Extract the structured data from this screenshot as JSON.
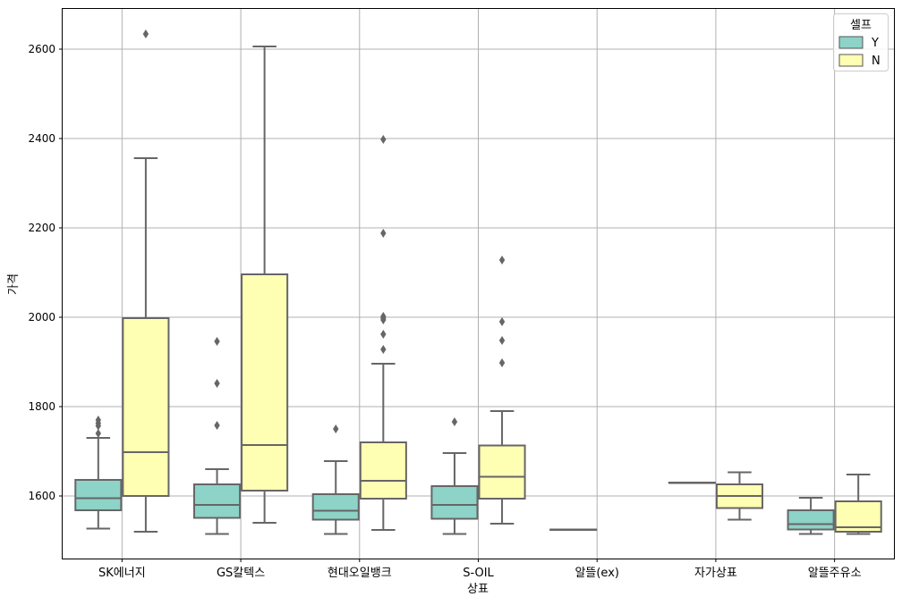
{
  "chart_data": {
    "type": "box",
    "xlabel": "상표",
    "ylabel": "가격",
    "ylim": [
      1460,
      2690
    ],
    "yticks": [
      1600,
      1800,
      2000,
      2200,
      2400,
      2600
    ],
    "grid": true,
    "legend": {
      "title": "셀프",
      "placement": "top-right"
    },
    "categories": [
      "SK에너지",
      "GS칼텍스",
      "현대오일뱅크",
      "S-OIL",
      "알뜰(ex)",
      "자가상표",
      "알뜰주유소"
    ],
    "series": [
      {
        "name": "Y",
        "color": "#8dd3c7",
        "boxes": [
          {
            "whislo": 1527,
            "q1": 1568,
            "med": 1595,
            "q3": 1636,
            "whishi": 1730,
            "fliers": [
              1740,
              1757,
              1763,
              1770
            ]
          },
          {
            "whislo": 1515,
            "q1": 1551,
            "med": 1580,
            "q3": 1626,
            "whishi": 1660,
            "fliers": [
              1758,
              1852,
              1946
            ]
          },
          {
            "whislo": 1515,
            "q1": 1547,
            "med": 1567,
            "q3": 1604,
            "whishi": 1678,
            "fliers": [
              1750
            ]
          },
          {
            "whislo": 1515,
            "q1": 1549,
            "med": 1580,
            "q3": 1622,
            "whishi": 1696,
            "fliers": [
              1766
            ]
          },
          {
            "whislo": 1525,
            "q1": 1525,
            "med": 1525,
            "q3": 1525,
            "whishi": 1525,
            "fliers": []
          },
          {
            "whislo": 1630,
            "q1": 1630,
            "med": 1630,
            "q3": 1630,
            "whishi": 1630,
            "fliers": []
          },
          {
            "whislo": 1515,
            "q1": 1525,
            "med": 1537,
            "q3": 1568,
            "whishi": 1596,
            "fliers": []
          }
        ]
      },
      {
        "name": "N",
        "color": "#ffffb3",
        "boxes": [
          {
            "whislo": 1520,
            "q1": 1600,
            "med": 1698,
            "q3": 1998,
            "whishi": 2356,
            "fliers": [
              2634
            ]
          },
          {
            "whislo": 1540,
            "q1": 1612,
            "med": 1714,
            "q3": 2096,
            "whishi": 2606,
            "fliers": []
          },
          {
            "whislo": 1524,
            "q1": 1594,
            "med": 1634,
            "q3": 1720,
            "whishi": 1896,
            "fliers": [
              1928,
              1962,
              1994,
              1998,
              2002,
              2188,
              2398
            ]
          },
          {
            "whislo": 1538,
            "q1": 1594,
            "med": 1643,
            "q3": 1713,
            "whishi": 1790,
            "fliers": [
              1898,
              1948,
              1990,
              2128
            ]
          },
          null,
          {
            "whislo": 1547,
            "q1": 1573,
            "med": 1600,
            "q3": 1626,
            "whishi": 1653,
            "fliers": []
          },
          {
            "whislo": 1515,
            "q1": 1520,
            "med": 1530,
            "q3": 1588,
            "whishi": 1648,
            "fliers": []
          }
        ]
      }
    ]
  }
}
